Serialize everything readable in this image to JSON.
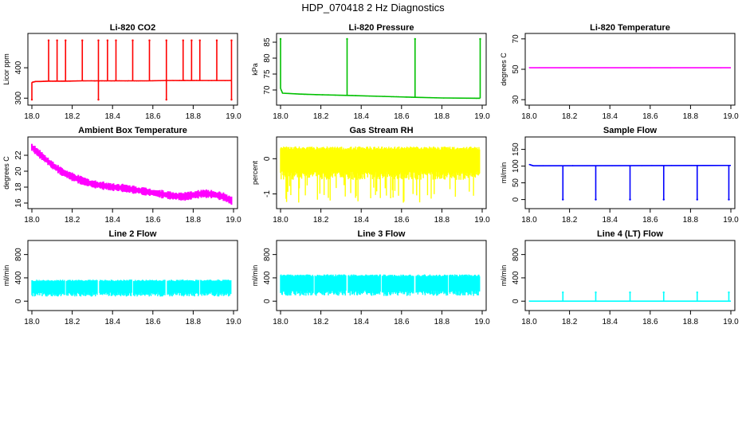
{
  "title": "HDP_070418  2 Hz Diagnostics",
  "chart_data": [
    {
      "type": "line",
      "title": "Li-820 CO2",
      "xlabel": "",
      "ylabel": "Licor ppm",
      "color": "#ff0000",
      "xlim": [
        18.0,
        19.0
      ],
      "ylim": [
        285,
        505
      ],
      "x_ticks": [
        18.0,
        18.2,
        18.4,
        18.6,
        18.8,
        19.0
      ],
      "y_ticks": [
        300,
        400
      ],
      "series": [
        {
          "x": [
            18.0,
            18.02,
            18.04,
            18.083,
            18.167,
            18.25,
            18.33,
            18.417,
            18.5,
            18.583,
            18.667,
            18.75,
            18.833,
            18.917,
            18.99
          ],
          "y": [
            352,
            355,
            355,
            356,
            356,
            357,
            357,
            357,
            357,
            357,
            358,
            358,
            358,
            358,
            358
          ]
        }
      ],
      "spikes_up": [
        18.083,
        18.125,
        18.167,
        18.25,
        18.33,
        18.375,
        18.417,
        18.5,
        18.583,
        18.667,
        18.75,
        18.792,
        18.833,
        18.917,
        18.99
      ],
      "spike_up_level": 490,
      "spikes_down": [
        18.0,
        18.33,
        18.667,
        18.99
      ],
      "spike_down_level": 295
    },
    {
      "type": "line",
      "title": "Li-820 Pressure",
      "xlabel": "",
      "ylabel": "kPa",
      "color": "#00c000",
      "xlim": [
        18.0,
        19.0
      ],
      "ylim": [
        66.0,
        87.0
      ],
      "x_ticks": [
        18.0,
        18.2,
        18.4,
        18.6,
        18.8,
        19.0
      ],
      "y_ticks": [
        70,
        75,
        80,
        85
      ],
      "series": [
        {
          "x": [
            18.0,
            18.01,
            18.1,
            18.2,
            18.33,
            18.5,
            18.667,
            18.8,
            18.99
          ],
          "y": [
            70.5,
            69.0,
            68.7,
            68.5,
            68.3,
            68.0,
            67.7,
            67.5,
            67.4
          ]
        }
      ],
      "spikes_up": [
        18.0,
        18.33,
        18.667,
        18.99
      ],
      "spike_up_level": 86.0
    },
    {
      "type": "line",
      "title": "Li-820 Temperature",
      "xlabel": "",
      "ylabel": "degrees C",
      "color": "#ff00ff",
      "xlim": [
        18.0,
        19.0
      ],
      "ylim": [
        28.0,
        72.0
      ],
      "x_ticks": [
        18.0,
        18.2,
        18.4,
        18.6,
        18.8,
        19.0
      ],
      "y_ticks": [
        30,
        50,
        70
      ],
      "series": [
        {
          "x": [
            18.0,
            19.0
          ],
          "y": [
            51.0,
            51.0
          ]
        }
      ]
    },
    {
      "type": "line",
      "title": "Ambient Box Temperature",
      "xlabel": "",
      "ylabel": "degrees C",
      "color": "#ff00ff",
      "xlim": [
        18.0,
        19.0
      ],
      "ylim": [
        15.6,
        24.0
      ],
      "x_ticks": [
        18.0,
        18.2,
        18.4,
        18.6,
        18.8,
        19.0
      ],
      "y_ticks": [
        16,
        18,
        20,
        22
      ],
      "series": [
        {
          "x": [
            18.0,
            18.05,
            18.1,
            18.15,
            18.2,
            18.25,
            18.3,
            18.35,
            18.4,
            18.45,
            18.5,
            18.55,
            18.6,
            18.65,
            18.7,
            18.75,
            18.8,
            18.85,
            18.9,
            18.95,
            18.99
          ],
          "y": [
            23.0,
            21.9,
            20.8,
            19.9,
            19.3,
            18.8,
            18.4,
            18.2,
            18.0,
            17.9,
            17.7,
            17.5,
            17.3,
            17.1,
            16.9,
            16.8,
            17.0,
            17.2,
            17.1,
            16.8,
            16.3
          ]
        }
      ],
      "band": 0.45
    },
    {
      "type": "area",
      "title": "Gas Stream RH",
      "xlabel": "",
      "ylabel": "percent",
      "color": "#ffff00",
      "xlim": [
        18.0,
        19.0
      ],
      "ylim": [
        -1.35,
        0.55
      ],
      "x_ticks": [
        18.0,
        18.2,
        18.4,
        18.6,
        18.8,
        19.0
      ],
      "y_ticks": [
        -1,
        0
      ],
      "band_range": [
        -0.6,
        0.35
      ],
      "series": [
        {
          "x": [
            18.0,
            19.0
          ],
          "y": [
            -0.15,
            -0.15
          ]
        }
      ]
    },
    {
      "type": "line",
      "title": "Sample Flow",
      "xlabel": "",
      "ylabel": "ml/min",
      "color": "#0000ff",
      "xlim": [
        18.0,
        19.0
      ],
      "ylim": [
        -20,
        180
      ],
      "x_ticks": [
        18.0,
        18.2,
        18.4,
        18.6,
        18.8,
        19.0
      ],
      "y_ticks": [
        0,
        50,
        100,
        150
      ],
      "series": [
        {
          "x": [
            18.0,
            18.02,
            19.0
          ],
          "y": [
            105,
            101,
            102
          ]
        }
      ],
      "spikes_down": [
        18.167,
        18.33,
        18.5,
        18.667,
        18.833,
        18.99
      ],
      "spike_down_level": 0
    },
    {
      "type": "area",
      "title": "Line 2 Flow",
      "xlabel": "",
      "ylabel": "ml/min",
      "color": "#00ffff",
      "xlim": [
        18.0,
        19.0
      ],
      "ylim": [
        -120,
        1000
      ],
      "x_ticks": [
        18.0,
        18.2,
        18.4,
        18.6,
        18.8,
        19.0
      ],
      "y_ticks": [
        0,
        400,
        800
      ],
      "band_range": [
        80,
        370
      ],
      "gaps": [
        18.167,
        18.33,
        18.5,
        18.667,
        18.833
      ],
      "series": [
        {
          "x": [
            18.0,
            19.0
          ],
          "y": [
            230,
            230
          ]
        }
      ]
    },
    {
      "type": "area",
      "title": "Line 3 Flow",
      "xlabel": "",
      "ylabel": "ml/min",
      "color": "#00ffff",
      "xlim": [
        18.0,
        19.0
      ],
      "ylim": [
        -120,
        1000
      ],
      "x_ticks": [
        18.0,
        18.2,
        18.4,
        18.6,
        18.8,
        19.0
      ],
      "y_ticks": [
        0,
        400,
        800
      ],
      "band_range": [
        90,
        460
      ],
      "gaps": [
        18.167,
        18.33,
        18.5,
        18.667,
        18.833
      ],
      "series": [
        {
          "x": [
            18.0,
            19.0
          ],
          "y": [
            280,
            280
          ]
        }
      ]
    },
    {
      "type": "line",
      "title": "Line 4 (LT) Flow",
      "xlabel": "",
      "ylabel": "ml/min",
      "color": "#00ffff",
      "xlim": [
        18.0,
        19.0
      ],
      "ylim": [
        -120,
        1000
      ],
      "x_ticks": [
        18.0,
        18.2,
        18.4,
        18.6,
        18.8,
        19.0
      ],
      "y_ticks": [
        0,
        400,
        800
      ],
      "series": [
        {
          "x": [
            18.0,
            19.0
          ],
          "y": [
            0,
            0
          ]
        }
      ],
      "spikes_up": [
        18.167,
        18.33,
        18.5,
        18.667,
        18.833,
        18.99
      ],
      "spike_up_level": 150
    }
  ]
}
